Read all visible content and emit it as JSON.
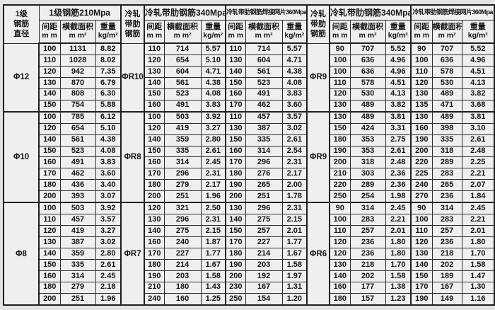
{
  "table": {
    "headers": {
      "diam_l1": "1级",
      "diam_l2": "钢筋",
      "diam_l3": "直径",
      "cold_l1": "冷轧",
      "cold_l2": "带肋",
      "cold_l3": "钢筋",
      "group_210": "1级钢筋210Mpa",
      "group_340": "冷轧带肋钢筋340Mpa",
      "group_360": "冷轧带肋钢筋焊接网片360Mpa",
      "spacing_l1": "间距",
      "spacing_l2": "m m",
      "area_l1": "横截面积",
      "area_l2": "m m²",
      "weight_l1": "重量",
      "weight_l2": "kg/m²"
    },
    "blocks": [
      {
        "labels": [
          "Φ12",
          "ΦR10",
          "ΦR9"
        ],
        "rows": [
          [
            [
              "100",
              "1131",
              "8.82"
            ],
            [
              "110",
              "714",
              "5.57"
            ],
            [
              "110",
              "714",
              "5.57"
            ],
            [
              "90",
              "707",
              "5.52"
            ],
            [
              "90",
              "707",
              "5.52"
            ]
          ],
          [
            [
              "110",
              "1028",
              "8.02"
            ],
            [
              "120",
              "654",
              "5.10"
            ],
            [
              "130",
              "604",
              "4.71"
            ],
            [
              "100",
              "636",
              "4.96"
            ],
            [
              "100",
              "636",
              "4.96"
            ]
          ],
          [
            [
              "120",
              "942",
              "7.35"
            ],
            [
              "130",
              "604",
              "4.71"
            ],
            [
              "140",
              "561",
              "4.38"
            ],
            [
              "100",
              "636",
              "4.96"
            ],
            [
              "110",
              "578",
              "4.51"
            ]
          ],
          [
            [
              "130",
              "870",
              "6.79"
            ],
            [
              "140",
              "561",
              "4.38"
            ],
            [
              "150",
              "523",
              "4.08"
            ],
            [
              "110",
              "578",
              "4.51"
            ],
            [
              "120",
              "530",
              "4.13"
            ]
          ],
          [
            [
              "140",
              "808",
              "6.30"
            ],
            [
              "150",
              "523",
              "4.08"
            ],
            [
              "160",
              "491",
              "3.83"
            ],
            [
              "120",
              "530",
              "4.13"
            ],
            [
              "130",
              "489",
              "3.82"
            ]
          ],
          [
            [
              "150",
              "754",
              "5.88"
            ],
            [
              "160",
              "491",
              "3.83"
            ],
            [
              "170",
              "462",
              "3.60"
            ],
            [
              "130",
              "489",
              "3.82"
            ],
            [
              "135",
              "471",
              "3.68"
            ]
          ]
        ]
      },
      {
        "labels": [
          "Φ10",
          "ΦR8",
          "ΦR9"
        ],
        "rows": [
          [
            [
              "100",
              "785",
              "6.12"
            ],
            [
              "100",
              "503",
              "3.92"
            ],
            [
              "110",
              "457",
              "3.57"
            ],
            [
              "130",
              "489",
              "3.81"
            ],
            [
              "130",
              "489",
              "3.81"
            ]
          ],
          [
            [
              "120",
              "654",
              "5.10"
            ],
            [
              "120",
              "419",
              "3.27"
            ],
            [
              "130",
              "387",
              "3.02"
            ],
            [
              "150",
              "424",
              "3.31"
            ],
            [
              "160",
              "398",
              "3.10"
            ]
          ],
          [
            [
              "140",
              "561",
              "4.38"
            ],
            [
              "140",
              "359",
              "2.80"
            ],
            [
              "150",
              "335",
              "2.61"
            ],
            [
              "180",
              "353",
              "2.75"
            ],
            [
              "190",
              "335",
              "2.61"
            ]
          ],
          [
            [
              "150",
              "523",
              "4.08"
            ],
            [
              "150",
              "335",
              "2.61"
            ],
            [
              "160",
              "314",
              "2.54"
            ],
            [
              "190",
              "353",
              "2.61"
            ],
            [
              "200",
              "318",
              "2.48"
            ]
          ],
          [
            [
              "160",
              "491",
              "3.83"
            ],
            [
              "160",
              "314",
              "2.45"
            ],
            [
              "170",
              "296",
              "2.31"
            ],
            [
              "200",
              "318",
              "2.48"
            ],
            [
              "220",
              "289",
              "2.25"
            ]
          ],
          [
            [
              "170",
              "462",
              "3.60"
            ],
            [
              "170",
              "296",
              "2.31"
            ],
            [
              "180",
              "276",
              "2.17"
            ],
            [
              "210",
              "303",
              "2.36"
            ],
            [
              "225",
              "283",
              "2.21"
            ]
          ],
          [
            [
              "180",
              "436",
              "3.40"
            ],
            [
              "180",
              "279",
              "2.17"
            ],
            [
              "190",
              "265",
              "2.00"
            ],
            [
              "220",
              "289",
              "2.36"
            ],
            [
              "240",
              "265",
              "2.07"
            ]
          ],
          [
            [
              "200",
              "393",
              "3.07"
            ],
            [
              "200",
              "251",
              "1.96"
            ],
            [
              "200",
              "251",
              "1.78"
            ],
            [
              "250",
              "254",
              "1.98"
            ],
            [
              "270",
              "236",
              "1.84"
            ]
          ]
        ]
      },
      {
        "labels": [
          "Φ8",
          "ΦR7",
          "ΦR6"
        ],
        "rows": [
          [
            [
              "100",
              "503",
              "3.92"
            ],
            [
              "120",
              "321",
              "2.50"
            ],
            [
              "130",
              "296",
              "2.31"
            ],
            [
              "90",
              "314",
              "2.45"
            ],
            [
              "90",
              "314",
              "2.45"
            ]
          ],
          [
            [
              "110",
              "457",
              "3.57"
            ],
            [
              "130",
              "296",
              "2.31"
            ],
            [
              "140",
              "275",
              "2.15"
            ],
            [
              "100",
              "283",
              "2.21"
            ],
            [
              "100",
              "283",
              "2.21"
            ]
          ],
          [
            [
              "120",
              "419",
              "3.27"
            ],
            [
              "140",
              "275",
              "2.15"
            ],
            [
              "150",
              "257",
              "2.01"
            ],
            [
              "110",
              "257",
              "2.01"
            ],
            [
              "110",
              "257",
              "2.01"
            ]
          ],
          [
            [
              "130",
              "387",
              "3.02"
            ],
            [
              "160",
              "240",
              "1.87"
            ],
            [
              "170",
              "227",
              "1.77"
            ],
            [
              "120",
              "236",
              "1.80"
            ],
            [
              "120",
              "236",
              "1.80"
            ]
          ],
          [
            [
              "140",
              "359",
              "2.80"
            ],
            [
              "170",
              "227",
              "1.77"
            ],
            [
              "180",
              "214",
              "1.67"
            ],
            [
              "120",
              "236",
              "1.80"
            ],
            [
              "130",
              "218",
              "1.70"
            ]
          ],
          [
            [
              "150",
              "335",
              "2.61"
            ],
            [
              "180",
              "214",
              "1.67"
            ],
            [
              "190",
              "203",
              "1.58"
            ],
            [
              "130",
              "218",
              "1.70"
            ],
            [
              "140",
              "202",
              "1.58"
            ]
          ],
          [
            [
              "160",
              "314",
              "2.45"
            ],
            [
              "190",
              "203",
              "1.58"
            ],
            [
              "200",
              "192",
              "1.97"
            ],
            [
              "140",
              "202",
              "1.58"
            ],
            [
              "150",
              "189",
              "1.47"
            ]
          ],
          [
            [
              "180",
              "279",
              "2.18"
            ],
            [
              "210",
              "180",
              "1.43"
            ],
            [
              "230",
              "167",
              "1.31"
            ],
            [
              "160",
              "177",
              "1.38"
            ],
            [
              "170",
              "167",
              "1.30"
            ]
          ],
          [
            [
              "200",
              "251",
              "1.96"
            ],
            [
              "240",
              "160",
              "1.25"
            ],
            [
              "250",
              "154",
              "1.20"
            ],
            [
              "180",
              "157",
              "1.23"
            ],
            [
              "190",
              "149",
              "1.16"
            ]
          ]
        ]
      }
    ]
  }
}
